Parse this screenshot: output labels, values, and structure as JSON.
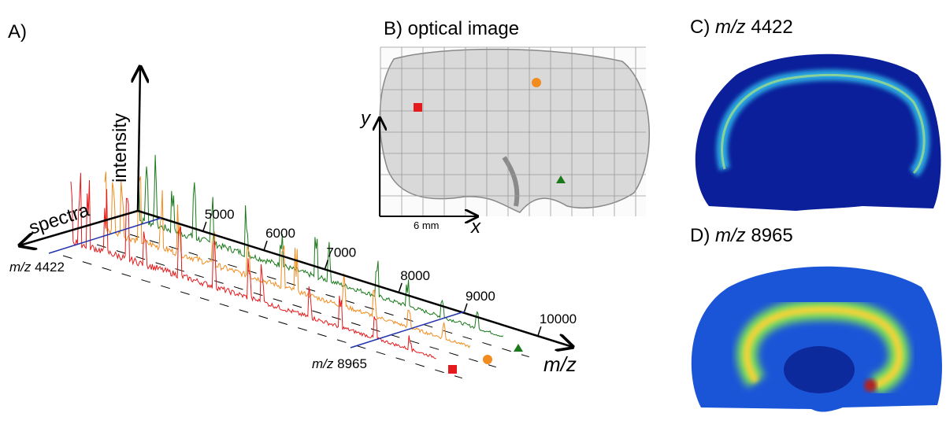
{
  "panel_a": {
    "label": "A)",
    "intensity_label": "intensity",
    "spectra_label": "spectra",
    "mz_label": "m/z",
    "ticks": [
      "5000",
      "6000",
      "7000",
      "8000",
      "9000",
      "10000"
    ],
    "annotation_low": {
      "prefix": "m/z",
      "value": "4422"
    },
    "annotation_high": {
      "prefix": "m/z",
      "value": "8965"
    }
  },
  "panel_b": {
    "title": "B) optical image",
    "x_label": "x",
    "y_label": "y",
    "scale_bar": "6 mm"
  },
  "panel_c": {
    "label": "C)",
    "prefix": "m/z",
    "value": "4422"
  },
  "panel_d": {
    "label": "D)",
    "prefix": "m/z",
    "value": "8965"
  }
}
